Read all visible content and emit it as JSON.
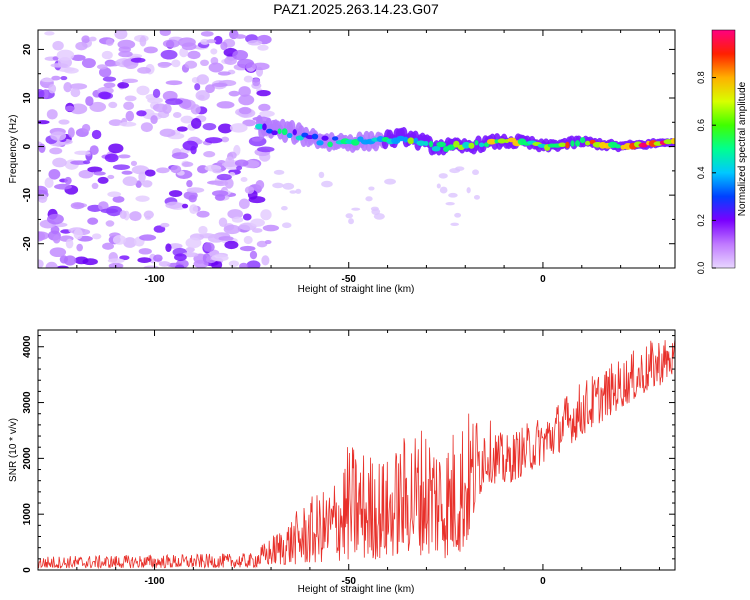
{
  "title": "PAZ1.2025.263.14.23.G07",
  "chart_data": [
    {
      "type": "heatmap",
      "title": "PAZ1.2025.263.14.23.G07",
      "xlabel": "Height of straight line (km)",
      "ylabel": "Frequency (Hz)",
      "xlim": [
        -130,
        34
      ],
      "ylim": [
        -25,
        24
      ],
      "xticks": [
        -100,
        -50,
        0
      ],
      "yticks": [
        -20,
        -10,
        0,
        10,
        20
      ],
      "grid": false,
      "description_of_field": {
        "noise_region_x": [
          -130,
          -70
        ],
        "ridge_start_x": -73,
        "ridge_points": [
          {
            "x": -73,
            "y": 4
          },
          {
            "x": -65,
            "y": 3
          },
          {
            "x": -55,
            "y": 1
          },
          {
            "x": -45,
            "y": 1
          },
          {
            "x": -35,
            "y": 2
          },
          {
            "x": -28,
            "y": 0
          },
          {
            "x": -20,
            "y": 0
          },
          {
            "x": -12,
            "y": 1
          },
          {
            "x": -5,
            "y": 1
          },
          {
            "x": 0,
            "y": 0
          },
          {
            "x": 10,
            "y": 1
          },
          {
            "x": 20,
            "y": 0
          },
          {
            "x": 34,
            "y": 1
          }
        ]
      },
      "colorbar": {
        "label": "Normalized spectral amplitude",
        "range": [
          0,
          1
        ],
        "ticks": [
          0.0,
          0.2,
          0.4,
          0.6,
          0.8
        ]
      }
    },
    {
      "type": "line",
      "xlabel": "Height of straight line (km)",
      "ylabel": "SNR (10 * v/v)",
      "xlim": [
        -130,
        34
      ],
      "ylim": [
        0,
        4300
      ],
      "xticks": [
        -100,
        -50,
        0
      ],
      "yticks": [
        0,
        1000,
        2000,
        3000,
        4000
      ],
      "color": "#e8302a",
      "series": [
        {
          "name": "SNR",
          "envelope": [
            {
              "x": -130,
              "low": 30,
              "high": 250
            },
            {
              "x": -75,
              "low": 40,
              "high": 300
            },
            {
              "x": -70,
              "low": 80,
              "high": 600
            },
            {
              "x": -60,
              "low": 100,
              "high": 1300
            },
            {
              "x": -55,
              "low": 150,
              "high": 1500
            },
            {
              "x": -50,
              "low": 150,
              "high": 2300
            },
            {
              "x": -40,
              "low": 200,
              "high": 2000
            },
            {
              "x": -35,
              "low": 300,
              "high": 2500
            },
            {
              "x": -30,
              "low": 250,
              "high": 2700
            },
            {
              "x": -25,
              "low": 200,
              "high": 2400
            },
            {
              "x": -20,
              "low": 300,
              "high": 2900
            },
            {
              "x": -15,
              "low": 1600,
              "high": 2800
            },
            {
              "x": -10,
              "low": 1500,
              "high": 2400
            },
            {
              "x": 0,
              "low": 1900,
              "high": 2800
            },
            {
              "x": 10,
              "low": 2400,
              "high": 3400
            },
            {
              "x": 20,
              "low": 2900,
              "high": 3800
            },
            {
              "x": 30,
              "low": 3300,
              "high": 4200
            },
            {
              "x": 34,
              "low": 3500,
              "high": 4150
            }
          ]
        }
      ]
    }
  ]
}
